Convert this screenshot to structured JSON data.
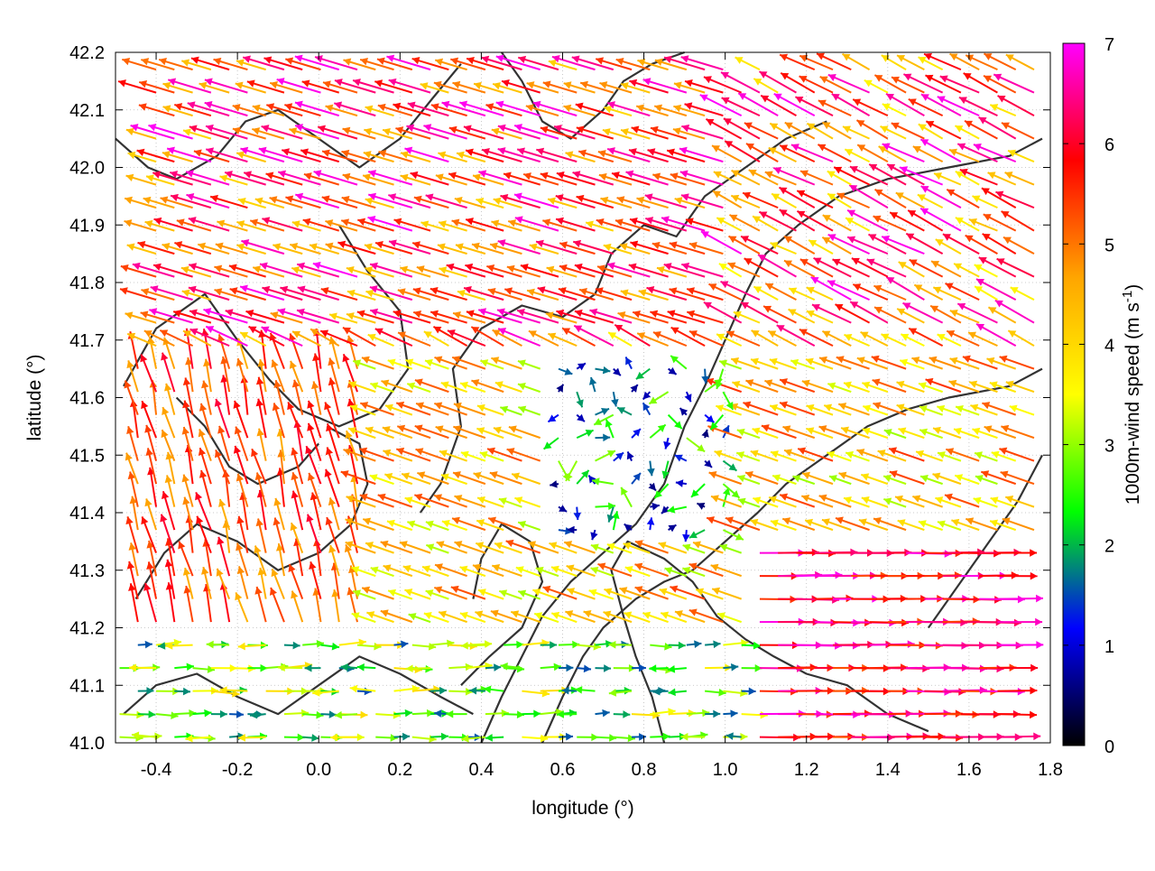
{
  "chart_data": {
    "type": "vector-field",
    "xlabel": "longitude (°)",
    "ylabel": "latitude (°)",
    "xlim": [
      -0.5,
      1.8
    ],
    "ylim": [
      41.0,
      42.2
    ],
    "xticks": [
      "-0.4",
      "-0.2",
      "0.0",
      "0.2",
      "0.4",
      "0.6",
      "0.8",
      "1.0",
      "1.2",
      "1.4",
      "1.6",
      "1.8"
    ],
    "yticks": [
      "41.0",
      "41.1",
      "41.2",
      "41.3",
      "41.4",
      "41.5",
      "41.6",
      "41.7",
      "41.8",
      "41.9",
      "42.0",
      "42.1",
      "42.2"
    ],
    "grid": true,
    "colorbar": {
      "label": "1000m-wind speed (m s",
      "label_sup": "-1",
      "label_end": ")",
      "range": [
        0,
        7
      ],
      "ticks": [
        "0",
        "1",
        "2",
        "3",
        "4",
        "5",
        "6",
        "7"
      ],
      "colors": [
        "#000000",
        "#0000ff",
        "#00ff00",
        "#ffff00",
        "#ffa500",
        "#ff0000",
        "#ff00ff"
      ]
    },
    "contours": {
      "color": "#333333",
      "paths": [
        [
          [
            -0.48,
            41.62
          ],
          [
            -0.4,
            41.72
          ],
          [
            -0.28,
            41.78
          ],
          [
            -0.2,
            41.7
          ],
          [
            -0.12,
            41.63
          ],
          [
            -0.05,
            41.58
          ],
          [
            0.05,
            41.55
          ],
          [
            0.15,
            41.58
          ],
          [
            0.22,
            41.65
          ],
          [
            0.2,
            41.75
          ],
          [
            0.12,
            41.82
          ],
          [
            0.05,
            41.9
          ]
        ],
        [
          [
            -0.45,
            41.25
          ],
          [
            -0.38,
            41.33
          ],
          [
            -0.3,
            41.38
          ],
          [
            -0.2,
            41.35
          ],
          [
            -0.1,
            41.3
          ],
          [
            0.0,
            41.33
          ],
          [
            0.08,
            41.38
          ],
          [
            0.12,
            41.45
          ],
          [
            0.1,
            41.52
          ],
          [
            0.02,
            41.55
          ]
        ],
        [
          [
            -0.35,
            41.6
          ],
          [
            -0.28,
            41.55
          ],
          [
            -0.22,
            41.48
          ],
          [
            -0.15,
            41.45
          ],
          [
            -0.05,
            41.48
          ],
          [
            0.0,
            41.52
          ]
        ],
        [
          [
            0.25,
            41.4
          ],
          [
            0.3,
            41.45
          ],
          [
            0.35,
            41.55
          ],
          [
            0.33,
            41.65
          ],
          [
            0.4,
            41.72
          ],
          [
            0.5,
            41.76
          ],
          [
            0.6,
            41.74
          ],
          [
            0.68,
            41.78
          ],
          [
            0.72,
            41.85
          ],
          [
            0.8,
            41.9
          ],
          [
            0.88,
            41.88
          ],
          [
            0.95,
            41.95
          ],
          [
            1.05,
            42.0
          ],
          [
            1.15,
            42.05
          ],
          [
            1.25,
            42.08
          ]
        ],
        [
          [
            0.4,
            41.0
          ],
          [
            0.45,
            41.08
          ],
          [
            0.5,
            41.15
          ],
          [
            0.55,
            41.22
          ],
          [
            0.62,
            41.28
          ],
          [
            0.7,
            41.33
          ],
          [
            0.78,
            41.38
          ],
          [
            0.85,
            41.45
          ],
          [
            0.9,
            41.55
          ],
          [
            0.95,
            41.62
          ],
          [
            1.0,
            41.7
          ],
          [
            1.05,
            41.78
          ],
          [
            1.1,
            41.85
          ],
          [
            1.18,
            41.9
          ],
          [
            1.28,
            41.95
          ],
          [
            1.4,
            41.98
          ],
          [
            1.55,
            42.0
          ],
          [
            1.7,
            42.02
          ],
          [
            1.78,
            42.05
          ]
        ],
        [
          [
            0.55,
            41.0
          ],
          [
            0.6,
            41.08
          ],
          [
            0.65,
            41.15
          ],
          [
            0.7,
            41.2
          ],
          [
            0.78,
            41.25
          ],
          [
            0.85,
            41.28
          ],
          [
            0.92,
            41.3
          ],
          [
            1.0,
            41.35
          ],
          [
            1.08,
            41.4
          ],
          [
            1.15,
            41.45
          ],
          [
            1.25,
            41.5
          ],
          [
            1.35,
            41.55
          ],
          [
            1.45,
            41.58
          ],
          [
            1.55,
            41.6
          ],
          [
            1.7,
            41.62
          ],
          [
            1.78,
            41.65
          ]
        ],
        [
          [
            0.85,
            41.0
          ],
          [
            0.82,
            41.08
          ],
          [
            0.78,
            41.15
          ],
          [
            0.75,
            41.22
          ],
          [
            0.72,
            41.3
          ],
          [
            0.76,
            41.35
          ],
          [
            0.85,
            41.32
          ],
          [
            0.92,
            41.28
          ],
          [
            0.98,
            41.22
          ],
          [
            1.05,
            41.18
          ],
          [
            1.12,
            41.15
          ],
          [
            1.2,
            41.12
          ],
          [
            1.3,
            41.1
          ],
          [
            1.4,
            41.05
          ],
          [
            1.5,
            41.02
          ]
        ],
        [
          [
            0.35,
            41.1
          ],
          [
            0.42,
            41.15
          ],
          [
            0.5,
            41.2
          ],
          [
            0.55,
            41.28
          ],
          [
            0.52,
            41.35
          ],
          [
            0.45,
            41.38
          ],
          [
            0.4,
            41.32
          ],
          [
            0.38,
            41.25
          ]
        ],
        [
          [
            0.45,
            42.2
          ],
          [
            0.5,
            42.15
          ],
          [
            0.55,
            42.08
          ],
          [
            0.62,
            42.05
          ],
          [
            0.7,
            42.1
          ],
          [
            0.75,
            42.15
          ],
          [
            0.82,
            42.18
          ],
          [
            0.9,
            42.2
          ]
        ],
        [
          [
            1.5,
            41.2
          ],
          [
            1.58,
            41.28
          ],
          [
            1.65,
            41.35
          ],
          [
            1.72,
            41.42
          ],
          [
            1.78,
            41.5
          ]
        ],
        [
          [
            -0.5,
            42.05
          ],
          [
            -0.42,
            42.0
          ],
          [
            -0.35,
            41.98
          ],
          [
            -0.25,
            42.02
          ],
          [
            -0.18,
            42.08
          ],
          [
            -0.1,
            42.1
          ],
          [
            0.0,
            42.05
          ],
          [
            0.1,
            42.0
          ],
          [
            0.2,
            42.05
          ],
          [
            0.28,
            42.12
          ],
          [
            0.35,
            42.18
          ]
        ],
        [
          [
            -0.48,
            41.05
          ],
          [
            -0.4,
            41.1
          ],
          [
            -0.3,
            41.12
          ],
          [
            -0.2,
            41.08
          ],
          [
            -0.1,
            41.05
          ],
          [
            0.0,
            41.1
          ],
          [
            0.1,
            41.15
          ],
          [
            0.2,
            41.12
          ],
          [
            0.3,
            41.08
          ],
          [
            0.38,
            41.05
          ]
        ]
      ]
    }
  }
}
